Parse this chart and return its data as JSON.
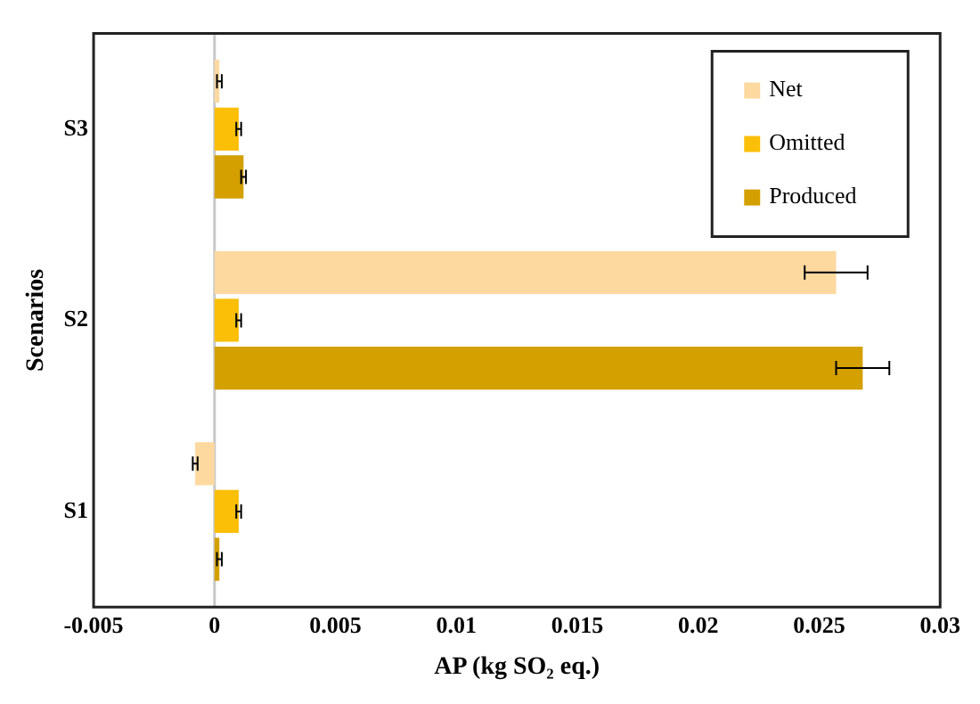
{
  "chart_data": {
    "type": "bar",
    "orientation": "horizontal",
    "xlabel": "AP (kg SO₂ eq.)",
    "ylabel": "Scenarios",
    "categories": [
      "S3",
      "S2",
      "S1"
    ],
    "series": [
      {
        "name": "Net",
        "color": "#fdd9a0",
        "values": [
          0.0002,
          0.0257,
          -0.0008
        ],
        "errors": [
          0.0001,
          0.0013,
          0.0001
        ]
      },
      {
        "name": "Omitted",
        "color": "#fbbf08",
        "values": [
          0.001,
          0.001,
          0.001
        ],
        "errors": [
          0.0001,
          0.0001,
          0.0001
        ]
      },
      {
        "name": "Produced",
        "color": "#d4a000",
        "values": [
          0.0012,
          0.0268,
          0.0002
        ],
        "errors": [
          0.0001,
          0.0011,
          0.0001
        ]
      }
    ],
    "xlim": [
      -0.005,
      0.03
    ],
    "xticks": [
      -0.005,
      0,
      0.005,
      0.01,
      0.015,
      0.02,
      0.025,
      0.03
    ],
    "ref_lines": [
      {
        "axis": "x",
        "value": 0,
        "color": "#c8c8c8"
      }
    ],
    "grid": false,
    "legend": "top right"
  }
}
